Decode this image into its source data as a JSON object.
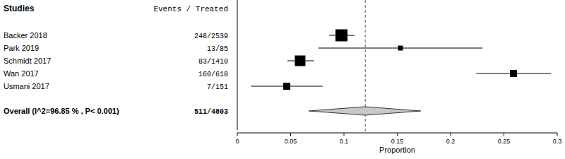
{
  "chart_data": {
    "type": "forest",
    "headers": {
      "studies": "Studies",
      "events": "Events / Treated"
    },
    "categories": [
      "Backer 2018",
      "Park 2019",
      "Schmidt 2017",
      "Wan 2017",
      "Usmani 2017"
    ],
    "events_labels": [
      "248/2539",
      "13/85",
      "83/1410",
      "160/618",
      "7/151"
    ],
    "values": [
      0.0977,
      0.153,
      0.0589,
      0.259,
      0.0464
    ],
    "ci_lower": [
      0.086,
      0.076,
      0.047,
      0.224,
      0.013
    ],
    "ci_upper": [
      0.11,
      0.23,
      0.072,
      0.294,
      0.08
    ],
    "weights": [
      21.0,
      17.0,
      20.2,
      18.2,
      18.2
    ],
    "overall": {
      "label": "Overall (I^2=96.85 % , P< 0.001)",
      "events_label": "511/4803",
      "value": 0.12,
      "ci_lower": 0.067,
      "ci_upper": 0.172
    },
    "x_label": "Proportion",
    "xlim": [
      0,
      0.3
    ],
    "xticks": [
      0,
      0.05,
      0.1,
      0.15,
      0.2,
      0.25,
      0.3
    ],
    "color": "#000000"
  }
}
